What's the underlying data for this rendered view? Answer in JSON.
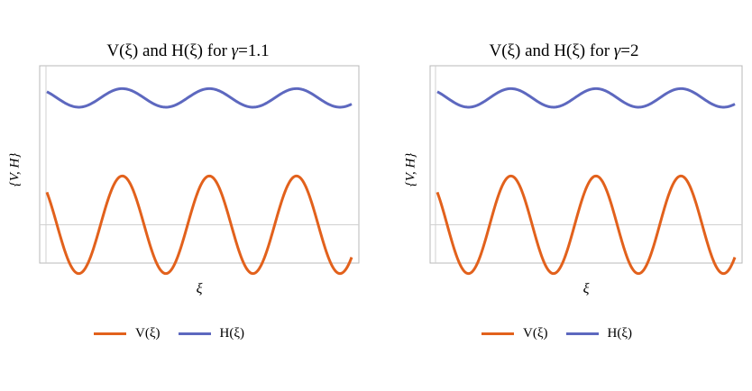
{
  "chart_data": [
    {
      "type": "line",
      "title_prefix": "V(ξ) and H(ξ) for ",
      "title_symbol": "γ",
      "title_suffix": "=1.1",
      "xlabel": "ξ",
      "ylabel": "{V, H}",
      "grid": false,
      "legend_position": "bottom",
      "series": [
        {
          "name": "V(ξ)",
          "color": "#e2611c",
          "amplitude": 1.0,
          "offset": 0.0,
          "cycles": 3.5,
          "phase": 0.0
        },
        {
          "name": "H(ξ)",
          "color": "#5d68bf",
          "amplitude": 0.19,
          "offset": 2.6,
          "cycles": 3.5,
          "phase": 0.0
        }
      ],
      "xlim": [
        0,
        7
      ],
      "ylim": [
        -0.6,
        3.0
      ],
      "reference_y": 0.0
    },
    {
      "type": "line",
      "title_prefix": "V(ξ) and H(ξ) for ",
      "title_symbol": "γ",
      "title_suffix": "=2",
      "xlabel": "ξ",
      "ylabel": "{V, H}",
      "grid": false,
      "legend_position": "bottom",
      "series": [
        {
          "name": "V(ξ)",
          "color": "#e2611c",
          "amplitude": 1.0,
          "offset": 0.0,
          "cycles": 3.5,
          "phase": 0.0
        },
        {
          "name": "H(ξ)",
          "color": "#5d68bf",
          "amplitude": 0.19,
          "offset": 2.6,
          "cycles": 3.5,
          "phase": 0.0
        }
      ],
      "xlim": [
        0,
        7
      ],
      "ylim": [
        -0.6,
        3.0
      ],
      "reference_y": 0.0
    }
  ]
}
